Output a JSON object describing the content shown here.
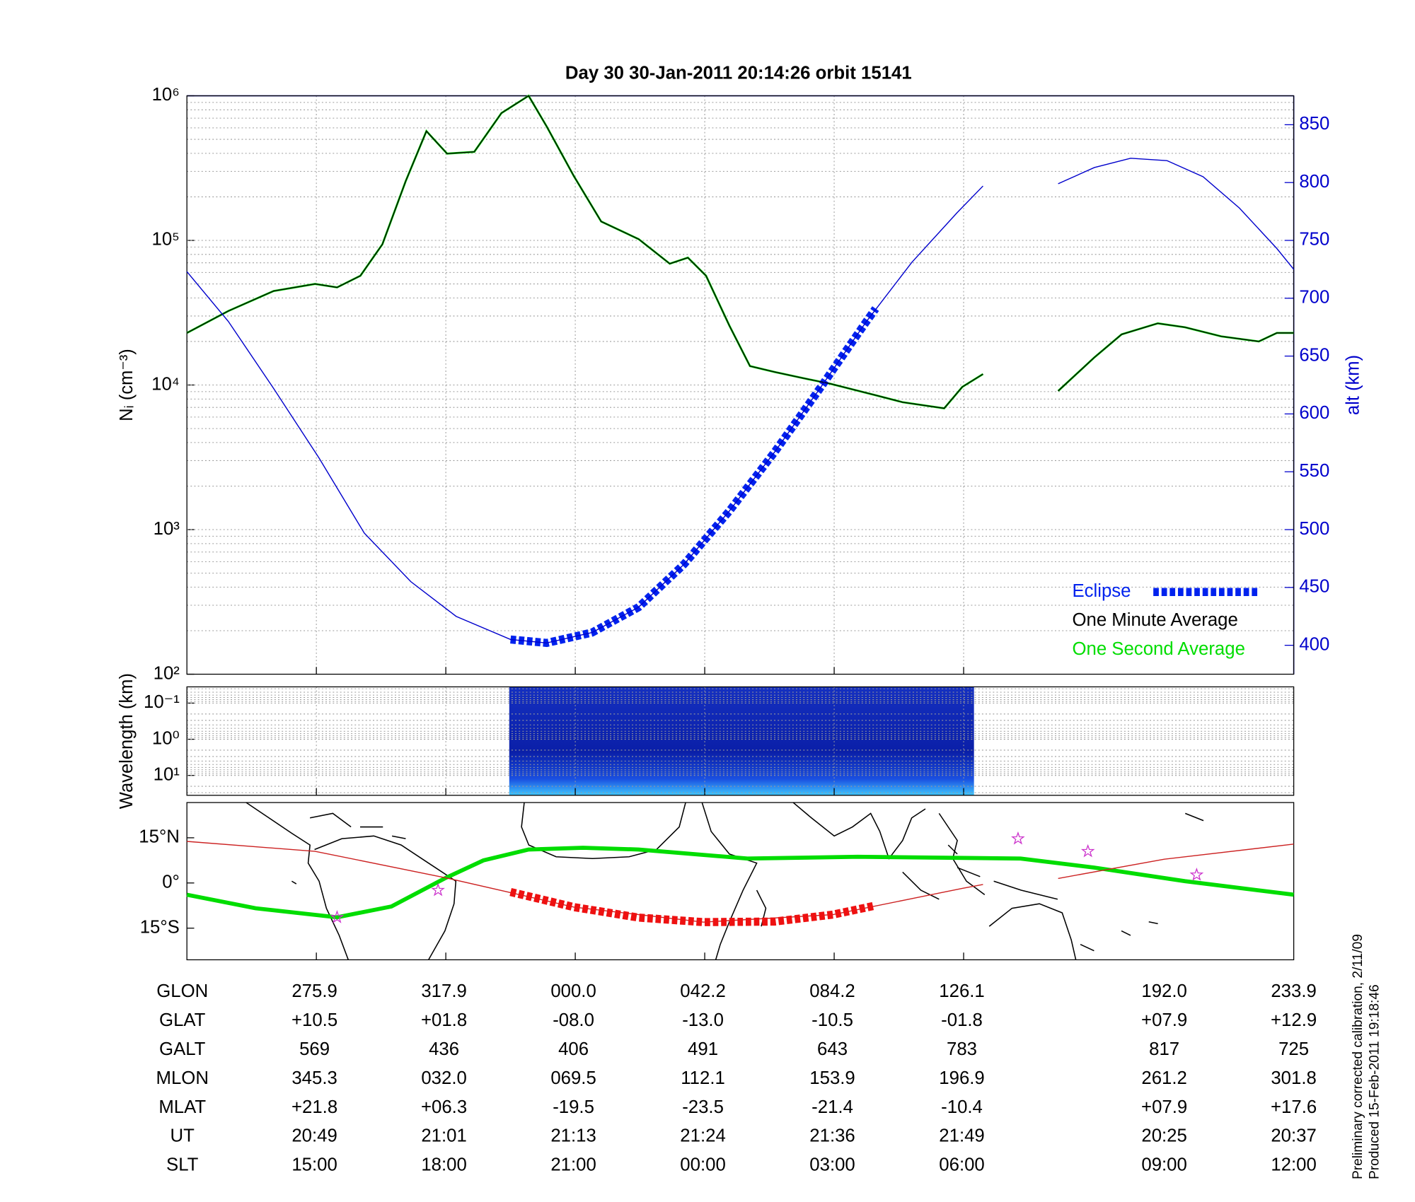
{
  "chart_data": [
    {
      "type": "line",
      "title": "Day 30  30-Jan-2011 20:14:26   orbit 15141",
      "ylabel": "Nᵢ (cm⁻³)",
      "y2label": "alt (km)",
      "ylog": true,
      "ylim": [
        100,
        1000000
      ],
      "yticks": [
        {
          "value": 100,
          "label": "10²"
        },
        {
          "value": 1000,
          "label": "10³"
        },
        {
          "value": 10000,
          "label": "10⁴"
        },
        {
          "value": 100000,
          "label": "10⁵"
        },
        {
          "value": 1000000,
          "label": "10⁶"
        }
      ],
      "y2lim": [
        375,
        875
      ],
      "y2ticks": [
        400,
        450,
        500,
        550,
        600,
        650,
        700,
        750,
        800,
        850
      ],
      "xlim": [
        0,
        85.5
      ],
      "xticks": [
        10,
        20,
        30,
        40,
        50,
        60
      ],
      "grid": true,
      "legend": "lower right",
      "x": [
        0,
        3.2,
        6.7,
        9.9,
        11.6,
        13.4,
        15.1,
        16.9,
        18.5,
        20.1,
        22.2,
        24.3,
        26.4,
        27.8,
        29.9,
        32.0,
        34.9,
        37.3,
        38.7,
        40.1,
        41.9,
        43.5,
        45.4,
        47.5,
        49.7,
        53.2,
        55.3,
        58.5,
        59.9,
        61.5,
        64.4,
        67.3,
        70.1,
        72.2,
        75.0,
        77.1,
        79.9,
        82.8,
        84.2,
        85.5
      ],
      "series": [
        {
          "name": "Eclipse",
          "color": "#0022ee",
          "linestyle": "dashed",
          "axis": "y2",
          "x": [
            25.0,
            27.8,
            31.3,
            34.9,
            38.4,
            41.9,
            45.4,
            48.9,
            52.5,
            53.2
          ],
          "values": [
            405,
            402,
            411,
            433,
            470,
            516,
            567,
            622,
            680,
            691
          ]
        },
        {
          "name": "One Minute Average",
          "color": "#000000",
          "linestyle": "thin",
          "values": [
            22900,
            32500,
            44700,
            50000,
            47300,
            57000,
            94000,
            257000,
            570000,
            398000,
            410000,
            760000,
            1000000,
            612000,
            278000,
            135000,
            102000,
            69000,
            76000,
            57000,
            25800,
            13500,
            12300,
            11200,
            10200,
            8500,
            7600,
            6900,
            9700,
            11900,
            null,
            9100,
            15500,
            22400,
            26700,
            25100,
            21700,
            20000,
            22900,
            22900
          ]
        },
        {
          "name": "One Second Average",
          "color": "#00dd00",
          "linestyle": "medium",
          "values": [
            22900,
            32500,
            44700,
            50000,
            47300,
            57000,
            94000,
            257000,
            570000,
            398000,
            410000,
            760000,
            1000000,
            612000,
            278000,
            135000,
            102000,
            69000,
            76000,
            57000,
            25800,
            13500,
            12300,
            11200,
            10200,
            8500,
            7600,
            6900,
            9700,
            11900,
            null,
            9100,
            15500,
            22400,
            26700,
            25100,
            21700,
            20000,
            22900,
            22900
          ]
        },
        {
          "color": "#0000cc",
          "linestyle": "thin",
          "axis": "y2",
          "x": [
            0,
            3.2,
            6.7,
            10.2,
            13.7,
            17.3,
            20.8,
            25.0,
            27.8,
            31.3,
            34.9,
            38.4,
            41.9,
            45.4,
            48.9,
            52.5,
            56.0,
            59.5,
            61.5,
            64.4,
            67.3,
            70.1,
            72.9,
            75.7,
            78.5,
            81.3,
            84.2,
            85.5
          ],
          "values": [
            723,
            680,
            622,
            562,
            497,
            455,
            425,
            405,
            402,
            411,
            433,
            470,
            516,
            567,
            622,
            680,
            731,
            774,
            797,
            null,
            799,
            813,
            821,
            819,
            805,
            778,
            743,
            725
          ]
        }
      ]
    },
    {
      "type": "spectrogram",
      "ylabel": "Wavelength (km)",
      "ylog": true,
      "ylim": [
        35.5,
        0.0355
      ],
      "yticks": [
        {
          "value": 0.1,
          "label": "10⁻¹"
        },
        {
          "value": 1,
          "label": "10⁰"
        },
        {
          "value": 10,
          "label": "10¹"
        }
      ],
      "xlim": [
        0,
        85.5
      ],
      "xticks": [
        10,
        20,
        30,
        40,
        50,
        60
      ],
      "grid": true,
      "x": [
        24.9,
        60.8
      ]
    },
    {
      "type": "map",
      "ylim": [
        -25.5,
        26.7
      ],
      "yticks": [
        {
          "value": 15,
          "label": "15°N"
        },
        {
          "value": 0,
          "label": "0°"
        },
        {
          "value": -15,
          "label": "15°S"
        }
      ],
      "xlim": [
        0,
        85.5
      ],
      "xticks": [
        10,
        20,
        30,
        40,
        50,
        60
      ],
      "series": [
        {
          "color": "#00dd00",
          "linestyle": "thick",
          "x": [
            0,
            5.3,
            11.6,
            15.8,
            19.9,
            22.9,
            26.4,
            30.6,
            34.9,
            43.3,
            51.8,
            64.4,
            70.1,
            77.1,
            85.5
          ],
          "values": [
            -3.9,
            -8.4,
            -11.4,
            -7.8,
            1.5,
            7.5,
            11.1,
            11.7,
            11.1,
            8.1,
            8.7,
            8.1,
            5.1,
            0.6,
            -3.9
          ]
        },
        {
          "color": "#cc2222",
          "linestyle": "thin",
          "x": [
            0,
            9.9,
            19.9,
            29.9,
            39.9,
            49.9,
            59.9,
            61.5,
            64.4,
            67.3,
            75.5,
            85.5
          ],
          "values": [
            13.8,
            10.5,
            1.8,
            -8.0,
            -13.0,
            -10.5,
            -1.8,
            -0.5,
            null,
            1.5,
            7.9,
            12.9
          ]
        },
        {
          "color": "#ee1111",
          "linestyle": "dashed",
          "x": [
            25.0,
            29.9,
            34.9,
            39.9,
            45.4,
            49.9,
            53.2
          ],
          "values": [
            -3.0,
            -8.0,
            -11.5,
            -13.0,
            -12.8,
            -10.5,
            -7.5
          ]
        },
        {
          "color": "#cc33cc",
          "marker": "star",
          "x": [
            11.6,
            19.4,
            64.2,
            69.6,
            78.0
          ],
          "values": [
            -11.4,
            -2.4,
            14.7,
            10.5,
            2.7
          ]
        }
      ]
    }
  ],
  "table": {
    "rows": [
      [
        "GLON",
        "275.9",
        "317.9",
        "000.0",
        "042.2",
        "084.2",
        "126.1",
        "192.0",
        "233.9"
      ],
      [
        "GLAT",
        "+10.5",
        "+01.8",
        "-08.0",
        "-13.0",
        "-10.5",
        "-01.8",
        "+07.9",
        "+12.9"
      ],
      [
        "GALT",
        "569",
        "436",
        "406",
        "491",
        "643",
        "783",
        "817",
        "725"
      ],
      [
        "MLON",
        "345.3",
        "032.0",
        "069.5",
        "112.1",
        "153.9",
        "196.9",
        "261.2",
        "301.8"
      ],
      [
        "MLAT",
        "+21.8",
        "+06.3",
        "-19.5",
        "-23.5",
        "-21.4",
        "-10.4",
        "+07.9",
        "+17.6"
      ],
      [
        "UT",
        "20:49",
        "21:01",
        "21:13",
        "21:24",
        "21:36",
        "21:49",
        "20:25",
        "20:37"
      ],
      [
        "SLT",
        "15:00",
        "18:00",
        "21:00",
        "00:00",
        "03:00",
        "06:00",
        "09:00",
        "12:00"
      ]
    ]
  },
  "notes": [
    "Preliminary corrected calibration, 2/11/09",
    "Produced 15-Feb-2011 19:18:46"
  ]
}
